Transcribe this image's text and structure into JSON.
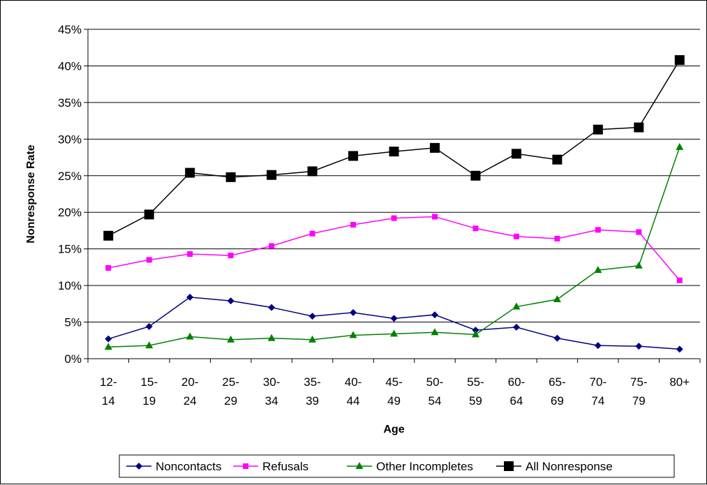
{
  "chart_data": {
    "type": "line",
    "title": "",
    "xlabel": "Age",
    "ylabel": "Nonresponse Rate",
    "categories": [
      [
        "12-",
        "14"
      ],
      [
        "15-",
        "19"
      ],
      [
        "20-",
        "24"
      ],
      [
        "25-",
        "29"
      ],
      [
        "30-",
        "34"
      ],
      [
        "35-",
        "39"
      ],
      [
        "40-",
        "44"
      ],
      [
        "45-",
        "49"
      ],
      [
        "50-",
        "54"
      ],
      [
        "55-",
        "59"
      ],
      [
        "60-",
        "64"
      ],
      [
        "65-",
        "69"
      ],
      [
        "70-",
        "74"
      ],
      [
        "75-",
        "79"
      ],
      [
        "80+"
      ]
    ],
    "ylim": [
      0,
      45
    ],
    "yticks": [
      "0%",
      "5%",
      "10%",
      "15%",
      "20%",
      "25%",
      "30%",
      "35%",
      "40%",
      "45%"
    ],
    "grid": true,
    "legend_position": "bottom",
    "series": [
      {
        "name": "Noncontacts",
        "color": "#000080",
        "marker": "diamond",
        "values": [
          2.7,
          4.4,
          8.4,
          7.9,
          7.0,
          5.8,
          6.3,
          5.5,
          6.0,
          3.9,
          4.3,
          2.8,
          1.8,
          1.7,
          1.3
        ]
      },
      {
        "name": "Refusals",
        "color": "#FF00FF",
        "marker": "square",
        "values": [
          12.4,
          13.5,
          14.3,
          14.1,
          15.4,
          17.1,
          18.3,
          19.2,
          19.4,
          17.8,
          16.7,
          16.4,
          17.6,
          17.3,
          10.7
        ]
      },
      {
        "name": "Other Incompletes",
        "color": "#008000",
        "marker": "triangle",
        "values": [
          1.6,
          1.8,
          3.0,
          2.6,
          2.8,
          2.6,
          3.2,
          3.4,
          3.6,
          3.3,
          7.1,
          8.1,
          12.1,
          12.7,
          28.9
        ]
      },
      {
        "name": "All Nonresponse",
        "color": "#000000",
        "marker": "bigsquare",
        "values": [
          16.8,
          19.7,
          25.4,
          24.8,
          25.1,
          25.6,
          27.7,
          28.3,
          28.8,
          25.0,
          28.0,
          27.2,
          31.3,
          31.6,
          40.8
        ]
      }
    ]
  }
}
